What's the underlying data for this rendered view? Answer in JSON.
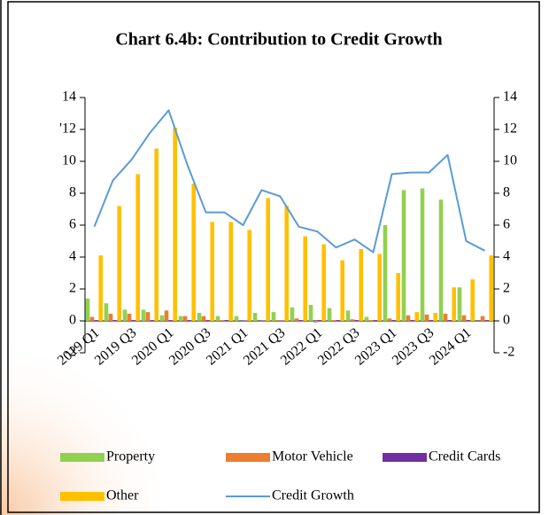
{
  "chart_data": {
    "type": "bar",
    "title": "Chart 6.4b: Contribution to Credit Growth",
    "categories": [
      "2019 Q1",
      null,
      "2019 Q3",
      null,
      "2020 Q1",
      null,
      "2020 Q3",
      null,
      "2021 Q1",
      null,
      "2021 Q3",
      null,
      "2022 Q1",
      null,
      "2022 Q3",
      null,
      "2023 Q1",
      null,
      "2023 Q3",
      null,
      "2024 Q1",
      null
    ],
    "series": [
      {
        "name": "Property",
        "color": "#92d050",
        "values": [
          1.4,
          1.1,
          0.7,
          0.7,
          0.35,
          0.3,
          0.5,
          0.3,
          0.3,
          0.5,
          0.55,
          0.85,
          1.0,
          0.8,
          0.65,
          0.25,
          6.0,
          8.2,
          8.3,
          7.6,
          2.1,
          0
        ]
      },
      {
        "name": "Motor Vehicle",
        "color": "#ed7d31",
        "values": [
          0.25,
          0.45,
          0.45,
          0.55,
          0.65,
          0.3,
          0.3,
          0.05,
          0,
          0,
          0.05,
          0.15,
          -0.1,
          0.05,
          0.1,
          0.05,
          0.15,
          0.35,
          0.4,
          0.45,
          0.35,
          0.3
        ]
      },
      {
        "name": "Credit Cards",
        "color": "#7030a0",
        "values": [
          0.05,
          0.05,
          0.05,
          0.05,
          0.05,
          0.05,
          0.05,
          0.05,
          0.02,
          0.02,
          0.02,
          0.05,
          0.05,
          0.05,
          0.05,
          0.05,
          0.05,
          0.05,
          0.05,
          0.05,
          0.05,
          0.05
        ]
      },
      {
        "name": "Other",
        "color": "#ffc000",
        "values": [
          4.1,
          7.2,
          9.2,
          10.8,
          12.1,
          8.6,
          6.2,
          6.2,
          5.7,
          7.7,
          7.2,
          5.3,
          4.8,
          3.8,
          4.5,
          4.2,
          3.0,
          0.55,
          0.5,
          2.1,
          2.6,
          4.1
        ]
      },
      {
        "name": "Credit Growth",
        "color": "#5b9bd5",
        "type": "line",
        "axis": "y2",
        "values": [
          5.9,
          8.8,
          10.1,
          11.8,
          13.2,
          9.8,
          6.8,
          6.8,
          6.0,
          8.2,
          7.8,
          5.9,
          5.6,
          4.6,
          5.1,
          4.3,
          9.2,
          9.3,
          9.3,
          10.4,
          5.0,
          4.4
        ]
      }
    ],
    "ylim": [
      -2,
      14
    ],
    "yticks": [
      -2,
      0,
      2,
      4,
      6,
      8,
      10,
      {
        "value": 12,
        "label": "'12"
      },
      14
    ],
    "y2lim": [
      -2,
      14
    ],
    "y2ticks": [
      -2,
      0,
      2,
      4,
      6,
      8,
      10,
      12,
      14
    ],
    "legend": "bottom"
  }
}
